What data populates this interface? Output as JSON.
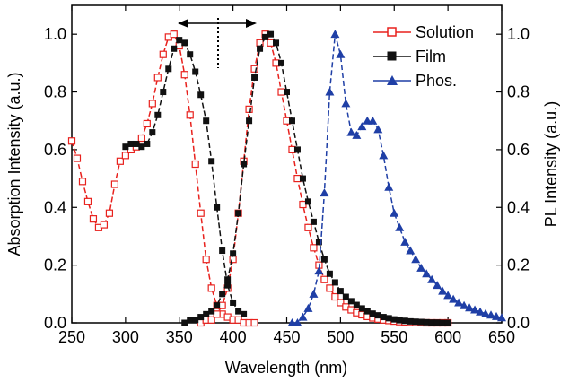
{
  "chart_data": {
    "type": "line",
    "xlabel": "Wavelength (nm)",
    "ylabel_left": "Absorption Intensity (a.u.)",
    "ylabel_right": "PL Intensity (a.u.)",
    "xlim": [
      250,
      650
    ],
    "ylim": [
      0.0,
      1.1
    ],
    "x_ticks": [
      "250",
      "300",
      "350",
      "400",
      "450",
      "500",
      "550",
      "600",
      "650"
    ],
    "y_ticks": [
      "0.0",
      "0.2",
      "0.4",
      "0.6",
      "0.8",
      "1.0"
    ],
    "grid": false,
    "legend_position": "top-right",
    "series": [
      {
        "name": "Solution",
        "color": "#e8211d",
        "marker": "open-square",
        "axis": "left",
        "x": [
          250,
          255,
          260,
          265,
          270,
          275,
          280,
          285,
          290,
          295,
          300,
          305,
          310,
          315,
          320,
          325,
          330,
          335,
          340,
          345,
          350,
          355,
          360,
          365,
          370,
          375,
          380,
          385,
          390,
          395,
          400,
          405,
          410,
          415,
          420
        ],
        "y": [
          0.63,
          0.57,
          0.49,
          0.42,
          0.36,
          0.33,
          0.34,
          0.38,
          0.48,
          0.56,
          0.58,
          0.6,
          0.61,
          0.64,
          0.69,
          0.76,
          0.85,
          0.93,
          0.99,
          1.0,
          0.96,
          0.86,
          0.72,
          0.55,
          0.38,
          0.22,
          0.12,
          0.06,
          0.03,
          0.02,
          0.01,
          0.01,
          0.0,
          0.0,
          0.0
        ]
      },
      {
        "name": "Solution",
        "color": "#e8211d",
        "marker": "open-square",
        "axis": "right",
        "x": [
          370,
          375,
          380,
          385,
          390,
          395,
          400,
          405,
          410,
          415,
          420,
          425,
          430,
          435,
          440,
          445,
          450,
          455,
          460,
          465,
          470,
          475,
          480,
          485,
          490,
          495,
          500,
          505,
          510,
          515,
          520,
          525,
          530,
          535,
          540,
          545,
          550,
          555,
          560,
          565,
          570,
          575,
          580,
          585,
          590,
          595,
          600
        ],
        "y": [
          0.0,
          0.01,
          0.01,
          0.03,
          0.06,
          0.12,
          0.22,
          0.38,
          0.56,
          0.74,
          0.88,
          0.97,
          1.0,
          0.97,
          0.9,
          0.8,
          0.7,
          0.6,
          0.5,
          0.41,
          0.33,
          0.26,
          0.2,
          0.15,
          0.12,
          0.09,
          0.07,
          0.055,
          0.045,
          0.035,
          0.028,
          0.022,
          0.017,
          0.013,
          0.01,
          0.008,
          0.006,
          0.004,
          0.003,
          0.002,
          0.001,
          0.001,
          0.0,
          0.0,
          0.0,
          0.0,
          0.0
        ]
      },
      {
        "name": "Film",
        "color": "#111111",
        "marker": "filled-square",
        "axis": "left",
        "x": [
          300,
          305,
          310,
          315,
          320,
          325,
          330,
          335,
          340,
          345,
          350,
          355,
          360,
          365,
          370,
          375,
          380,
          385,
          390,
          395,
          400,
          405,
          410
        ],
        "y": [
          0.61,
          0.62,
          0.62,
          0.61,
          0.62,
          0.66,
          0.72,
          0.8,
          0.88,
          0.95,
          0.98,
          0.97,
          0.93,
          0.87,
          0.79,
          0.7,
          0.56,
          0.4,
          0.25,
          0.13,
          0.07,
          0.04,
          0.03
        ]
      },
      {
        "name": "Film",
        "color": "#111111",
        "marker": "filled-square",
        "axis": "right",
        "x": [
          355,
          360,
          365,
          370,
          375,
          380,
          385,
          390,
          395,
          400,
          405,
          410,
          415,
          420,
          425,
          430,
          435,
          440,
          445,
          450,
          455,
          460,
          465,
          470,
          475,
          480,
          485,
          490,
          495,
          500,
          505,
          510,
          515,
          520,
          525,
          530,
          535,
          540,
          545,
          550,
          555,
          560,
          565,
          570,
          575,
          580,
          585,
          590,
          595,
          600
        ],
        "y": [
          0.0,
          0.01,
          0.01,
          0.02,
          0.03,
          0.04,
          0.06,
          0.1,
          0.15,
          0.24,
          0.38,
          0.55,
          0.7,
          0.85,
          0.95,
          0.99,
          1.0,
          0.97,
          0.9,
          0.8,
          0.7,
          0.6,
          0.5,
          0.42,
          0.35,
          0.28,
          0.22,
          0.17,
          0.14,
          0.11,
          0.09,
          0.075,
          0.062,
          0.05,
          0.04,
          0.032,
          0.026,
          0.02,
          0.016,
          0.012,
          0.009,
          0.007,
          0.005,
          0.004,
          0.003,
          0.002,
          0.001,
          0.001,
          0.0,
          0.0
        ]
      },
      {
        "name": "Phos.",
        "color": "#1f3fa6",
        "marker": "filled-triangle",
        "axis": "right",
        "x": [
          455,
          460,
          465,
          470,
          475,
          480,
          485,
          490,
          495,
          500,
          505,
          510,
          515,
          520,
          525,
          530,
          535,
          540,
          545,
          550,
          555,
          560,
          565,
          570,
          575,
          580,
          585,
          590,
          595,
          600,
          605,
          610,
          615,
          620,
          625,
          630,
          635,
          640,
          645,
          650
        ],
        "y": [
          0.0,
          0.0,
          0.02,
          0.05,
          0.1,
          0.18,
          0.45,
          0.8,
          1.0,
          0.93,
          0.76,
          0.66,
          0.65,
          0.68,
          0.7,
          0.7,
          0.67,
          0.58,
          0.47,
          0.38,
          0.33,
          0.28,
          0.25,
          0.22,
          0.19,
          0.17,
          0.15,
          0.13,
          0.11,
          0.095,
          0.082,
          0.07,
          0.06,
          0.052,
          0.045,
          0.038,
          0.032,
          0.027,
          0.022,
          0.018
        ]
      }
    ],
    "annotations": [
      "double-headed arrow with dotted vertical line near 385 nm"
    ]
  },
  "legend": {
    "solution": "Solution",
    "film": "Film",
    "phos": "Phos."
  },
  "right_ticks": [
    "0.0",
    "0.2",
    "0.4",
    "0.6",
    "0.8",
    "1.0"
  ]
}
